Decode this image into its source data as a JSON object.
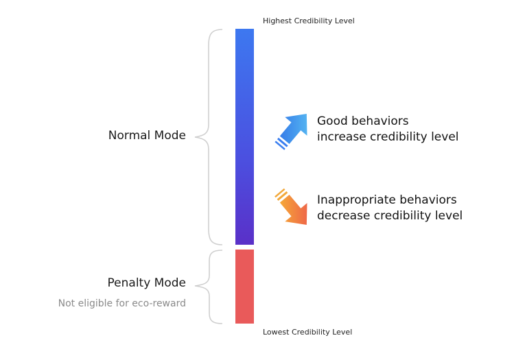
{
  "scale": {
    "top_label": "Highest Credibility Level",
    "bottom_label": "Lowest Credibility Level"
  },
  "modes": {
    "normal": {
      "label": "Normal Mode",
      "color_top": "#3d78f0",
      "color_bottom": "#5a30c8"
    },
    "penalty": {
      "label": "Penalty Mode",
      "note": "Not eligible for eco-reward",
      "color": "#e95a5a"
    }
  },
  "behaviors": {
    "good": {
      "icon": "up-right-arrow-icon",
      "line1": "Good behaviors",
      "line2": "increase credibility level"
    },
    "bad": {
      "icon": "down-right-arrow-icon",
      "line1": "Inappropriate behaviors",
      "line2": "decrease credibility level"
    }
  }
}
